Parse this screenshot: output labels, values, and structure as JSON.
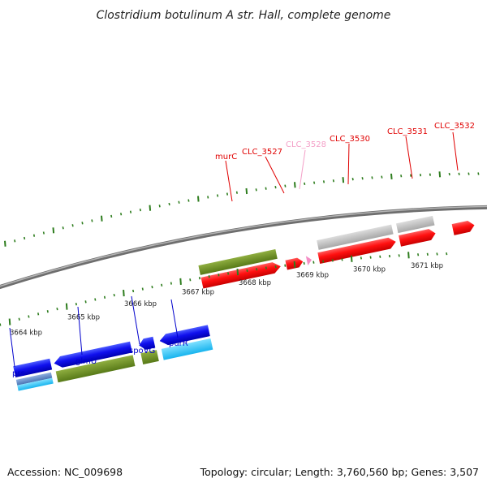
{
  "title": "Clostridium botulinum A str. Hall, complete genome",
  "footer": {
    "accession": "Accession: NC_009698",
    "summary": "Topology: circular; Length: 3,760,560 bp; Genes: 3,507"
  },
  "scale_labels": [
    "3664 kbp",
    "3665 kbp",
    "3666 kbp",
    "3667 kbp",
    "3668 kbp",
    "3669 kbp",
    "3670 kbp",
    "3671 kbp"
  ],
  "gene_labels": {
    "forward": [
      {
        "name": "murC",
        "color": "#e00000"
      },
      {
        "name": "CLC_3527",
        "color": "#e00000"
      },
      {
        "name": "CLC_3528",
        "color": "#f4a0c8"
      },
      {
        "name": "CLC_3530",
        "color": "#e00000"
      },
      {
        "name": "CLC_3531",
        "color": "#e00000"
      },
      {
        "name": "CLC_3532",
        "color": "#e00000"
      }
    ],
    "reverse": [
      {
        "name": "prs",
        "color": "#0000cc"
      },
      {
        "name": "glmU",
        "color": "#0000cc"
      },
      {
        "name": "spoVG",
        "color": "#0000cc"
      },
      {
        "name": "purR",
        "color": "#0000cc"
      }
    ]
  },
  "colors": {
    "backbone": "#8a8a8a",
    "tick": "#2e7d1e",
    "forward_gene": "#ff0000",
    "reverse_gene": "#0000ee",
    "cog_olive": "#6b8e23",
    "cog_gray": "#c0c0c0",
    "cog_cyan": "#33ccff",
    "cog_steel": "#5b86c6",
    "misc_pink": "#f48cc4"
  }
}
